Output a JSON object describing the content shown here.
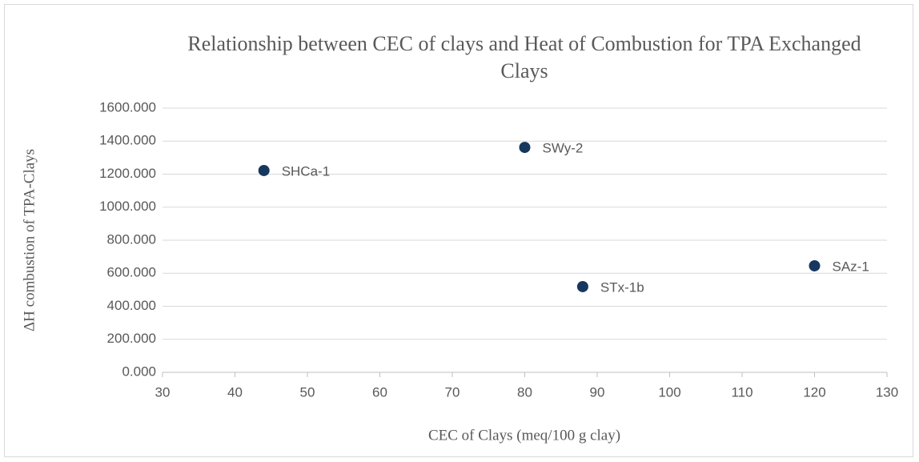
{
  "chart_data": {
    "type": "scatter",
    "title": "Relationship between CEC of clays and Heat of Combustion for TPA Exchanged Clays",
    "x_label": "CEC of Clays (meq/100 g clay)",
    "y_label": "ΔH combustion of TPA-Clays",
    "series": [
      {
        "name": "TPA Exchanged Clays",
        "color": "#17375e",
        "x": [
          44,
          80,
          88,
          120
        ],
        "values": [
          1222,
          1362,
          519,
          645
        ],
        "point_labels": [
          "SHCa-1",
          "SWy-2",
          "STx-1b",
          "SAz-1"
        ]
      }
    ],
    "xlim": [
      30,
      130
    ],
    "xticks": [
      30,
      40,
      50,
      60,
      70,
      80,
      90,
      100,
      110,
      120,
      130
    ],
    "ylim": [
      0,
      1600
    ],
    "yticks": [
      {
        "value": 0,
        "label": "0.000"
      },
      {
        "value": 200,
        "label": "200.000"
      },
      {
        "value": 400,
        "label": "400.000"
      },
      {
        "value": 600,
        "label": "600.000"
      },
      {
        "value": 800,
        "label": "800.000"
      },
      {
        "value": 1000,
        "label": "1000.000"
      },
      {
        "value": 1200,
        "label": "1200.000"
      },
      {
        "value": 1400,
        "label": "1400.000"
      },
      {
        "value": 1600,
        "label": "1600.000"
      }
    ],
    "grid": true
  }
}
